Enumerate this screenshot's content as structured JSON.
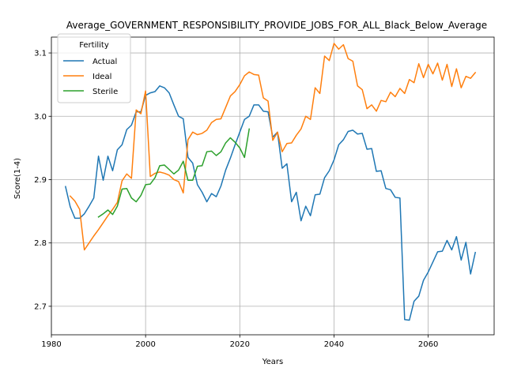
{
  "chart_data": {
    "type": "line",
    "title": "Average_GOVERNMENT_RESPONSIBILITY_PROVIDE_JOBS_FOR_ALL_Black_Below_Average",
    "xlabel": "Years",
    "ylabel": "Score(1-4)",
    "xlim": [
      1980,
      2074
    ],
    "ylim": [
      2.655,
      3.125
    ],
    "xticks": [
      1980,
      2000,
      2020,
      2040,
      2060
    ],
    "yticks": [
      2.7,
      2.8,
      2.9,
      3.0,
      3.1
    ],
    "xtick_labels": [
      "1980",
      "2000",
      "2020",
      "2040",
      "2060"
    ],
    "ytick_labels": [
      "2.7",
      "2.8",
      "2.9",
      "3.0",
      "3.1"
    ],
    "grid": true,
    "legend": {
      "title": "Fertility",
      "placement": "upper-left"
    },
    "series": [
      {
        "name": "Actual",
        "color": "#1f77b4",
        "x": [
          1983,
          1984,
          1985,
          1986,
          1987,
          1988,
          1989,
          1990,
          1991,
          1992,
          1993,
          1994,
          1995,
          1996,
          1997,
          1998,
          1999,
          2000,
          2001,
          2002,
          2003,
          2004,
          2005,
          2006,
          2007,
          2008,
          2009,
          2010,
          2011,
          2012,
          2013,
          2014,
          2015,
          2016,
          2017,
          2018,
          2019,
          2020,
          2021,
          2022,
          2023,
          2024,
          2025,
          2026,
          2027,
          2028,
          2029,
          2030,
          2031,
          2032,
          2033,
          2034,
          2035,
          2036,
          2037,
          2038,
          2039,
          2040,
          2041,
          2042,
          2043,
          2044,
          2045,
          2046,
          2047,
          2048,
          2049,
          2050,
          2051,
          2052,
          2053,
          2054,
          2055,
          2056,
          2057,
          2058,
          2059,
          2060,
          2061,
          2062,
          2063,
          2064,
          2065,
          2066,
          2067,
          2068,
          2069,
          2070
        ],
        "values": [
          2.889,
          2.857,
          2.839,
          2.839,
          2.846,
          2.858,
          2.871,
          2.937,
          2.899,
          2.937,
          2.914,
          2.947,
          2.955,
          2.979,
          2.986,
          3.007,
          3.007,
          3.033,
          3.037,
          3.039,
          3.048,
          3.045,
          3.037,
          3.018,
          3.0,
          2.996,
          2.935,
          2.926,
          2.892,
          2.88,
          2.865,
          2.878,
          2.873,
          2.89,
          2.915,
          2.934,
          2.955,
          2.975,
          2.995,
          3.0,
          3.018,
          3.018,
          3.008,
          3.007,
          2.967,
          2.975,
          2.918,
          2.925,
          2.865,
          2.88,
          2.835,
          2.858,
          2.843,
          2.876,
          2.877,
          2.903,
          2.914,
          2.931,
          2.955,
          2.963,
          2.976,
          2.978,
          2.972,
          2.973,
          2.948,
          2.949,
          2.913,
          2.914,
          2.886,
          2.884,
          2.872,
          2.871,
          2.679,
          2.678,
          2.708,
          2.716,
          2.741,
          2.754,
          2.77,
          2.786,
          2.787,
          2.804,
          2.789,
          2.81,
          2.773,
          2.801,
          2.751,
          2.785
        ]
      },
      {
        "name": "Ideal",
        "color": "#ff7f0e",
        "x": [
          1984,
          1985,
          1986,
          1987,
          1988,
          1989,
          1990,
          1991,
          1992,
          1993,
          1994,
          1995,
          1996,
          1997,
          1998,
          1999,
          2000,
          2001,
          2002,
          2003,
          2004,
          2005,
          2006,
          2007,
          2008,
          2009,
          2010,
          2011,
          2012,
          2013,
          2014,
          2015,
          2016,
          2017,
          2018,
          2019,
          2020,
          2021,
          2022,
          2023,
          2024,
          2025,
          2026,
          2027,
          2028,
          2029,
          2030,
          2031,
          2032,
          2033,
          2034,
          2035,
          2036,
          2037,
          2038,
          2039,
          2040,
          2041,
          2042,
          2043,
          2044,
          2045,
          2046,
          2047,
          2048,
          2049,
          2050,
          2051,
          2052,
          2053,
          2054,
          2055,
          2056,
          2057,
          2058,
          2059,
          2060,
          2061,
          2062,
          2063,
          2064,
          2065,
          2066,
          2067,
          2068,
          2069,
          2070
        ],
        "values": [
          2.874,
          2.866,
          2.853,
          2.789,
          2.8,
          2.811,
          2.821,
          2.832,
          2.843,
          2.853,
          2.864,
          2.898,
          2.909,
          2.902,
          3.01,
          3.004,
          3.04,
          2.905,
          2.91,
          2.912,
          2.91,
          2.907,
          2.9,
          2.897,
          2.879,
          2.963,
          2.975,
          2.971,
          2.973,
          2.978,
          2.99,
          2.995,
          2.996,
          3.014,
          3.032,
          3.039,
          3.05,
          3.064,
          3.07,
          3.066,
          3.065,
          3.029,
          3.024,
          2.962,
          2.975,
          2.944,
          2.957,
          2.958,
          2.97,
          2.98,
          3.0,
          2.995,
          3.045,
          3.036,
          3.095,
          3.088,
          3.115,
          3.106,
          3.113,
          3.091,
          3.087,
          3.048,
          3.042,
          3.012,
          3.018,
          3.008,
          3.025,
          3.023,
          3.038,
          3.031,
          3.044,
          3.036,
          3.058,
          3.053,
          3.083,
          3.061,
          3.082,
          3.067,
          3.084,
          3.057,
          3.082,
          3.047,
          3.075,
          3.045,
          3.063,
          3.06,
          3.069
        ]
      },
      {
        "name": "Sterile",
        "color": "#2ca02c",
        "x": [
          1990,
          1991,
          1992,
          1993,
          1994,
          1995,
          1996,
          1997,
          1998,
          1999,
          2000,
          2001,
          2002,
          2003,
          2004,
          2005,
          2006,
          2007,
          2008,
          2009,
          2010,
          2011,
          2012,
          2013,
          2014,
          2015,
          2016,
          2017,
          2018,
          2019,
          2020,
          2021,
          2022
        ],
        "values": [
          2.841,
          2.846,
          2.852,
          2.845,
          2.858,
          2.885,
          2.886,
          2.871,
          2.865,
          2.875,
          2.892,
          2.893,
          2.903,
          2.922,
          2.923,
          2.916,
          2.909,
          2.915,
          2.929,
          2.899,
          2.899,
          2.921,
          2.922,
          2.944,
          2.945,
          2.938,
          2.944,
          2.958,
          2.966,
          2.959,
          2.95,
          2.935,
          2.98
        ]
      }
    ]
  }
}
